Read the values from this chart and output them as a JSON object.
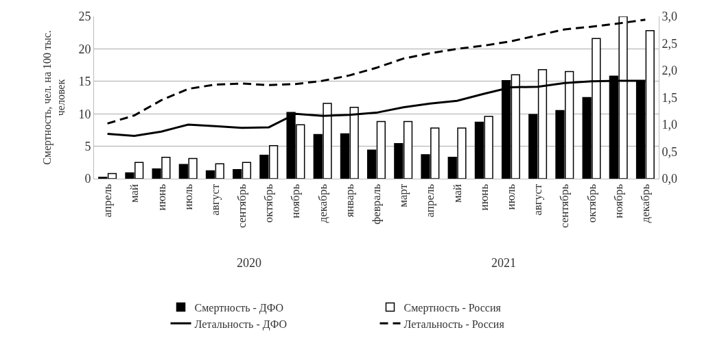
{
  "chart_data": {
    "type": "bar",
    "ylabel": "Смертность, чел. на 100 тыс. человек",
    "categories": [
      "апрель",
      "май",
      "июнь",
      "июль",
      "август",
      "сентябрь",
      "октябрь",
      "ноябрь",
      "декабрь",
      "январь",
      "февраль",
      "март",
      "апрель",
      "май",
      "июнь",
      "июль",
      "август",
      "сентябрь",
      "октябрь",
      "ноябрь",
      "декабрь"
    ],
    "series": [
      {
        "name": "Смертность - ДФО",
        "color": "#000000",
        "values": [
          0.2,
          0.9,
          1.5,
          2.2,
          1.2,
          1.4,
          3.6,
          10.2,
          6.8,
          6.9,
          4.4,
          5.4,
          3.7,
          3.3,
          8.7,
          15.1,
          9.9,
          10.5,
          12.5,
          15.8,
          15.0
        ]
      },
      {
        "name": "Смертность - Россия",
        "color": "#ffffff",
        "values": [
          0.8,
          2.5,
          3.3,
          3.1,
          2.3,
          2.5,
          5.1,
          8.3,
          11.6,
          11.0,
          8.8,
          8.8,
          7.8,
          7.8,
          9.6,
          16.0,
          16.8,
          16.5,
          21.6,
          25.0,
          22.8
        ]
      },
      {
        "name": "Летальность - ДФО",
        "type": "line",
        "axis": "y2",
        "color": "#000000",
        "line_style": "solid",
        "values": [
          0.83,
          0.79,
          0.87,
          1.0,
          0.97,
          0.94,
          0.95,
          1.2,
          1.16,
          1.18,
          1.22,
          1.32,
          1.39,
          1.44,
          1.57,
          1.69,
          1.7,
          1.77,
          1.8,
          1.81,
          1.81
        ]
      },
      {
        "name": "Летальность - Россия",
        "type": "line",
        "axis": "y2",
        "color": "#000000",
        "line_style": "dashed",
        "values": [
          1.02,
          1.17,
          1.45,
          1.66,
          1.74,
          1.76,
          1.73,
          1.75,
          1.81,
          1.91,
          2.05,
          2.22,
          2.32,
          2.4,
          2.46,
          2.54,
          2.65,
          2.76,
          2.81,
          2.87,
          2.94
        ]
      }
    ],
    "ylim": [
      0,
      25
    ],
    "yticks": [
      0,
      5,
      10,
      15,
      20,
      25
    ],
    "y2lim": [
      0,
      3
    ],
    "y2ticks": [
      {
        "value": 0,
        "label": "0,0"
      },
      {
        "value": 0.5,
        "label": "0,5"
      },
      {
        "value": 1,
        "label": "1,0"
      },
      {
        "value": 1.5,
        "label": "1,5"
      },
      {
        "value": 2,
        "label": "2,0"
      },
      {
        "value": 2.5,
        "label": "2,5"
      },
      {
        "value": 3,
        "label": "3,0"
      }
    ],
    "annotations": [
      "2020",
      "2021"
    ],
    "grid": "y",
    "legend": "bottom",
    "marker": "none"
  }
}
